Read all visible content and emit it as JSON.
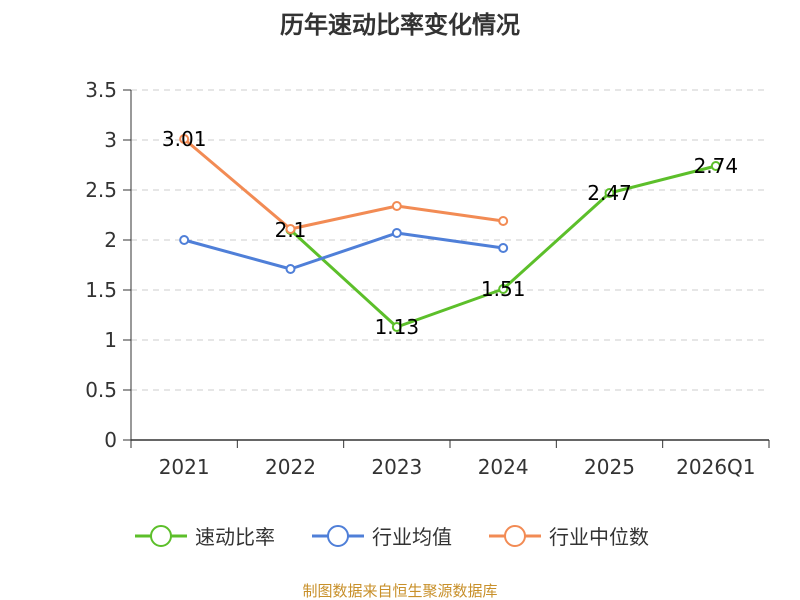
{
  "chart_data": {
    "type": "line",
    "title": "历年速动比率变化情况",
    "categories": [
      "2021",
      "2022",
      "2023",
      "2024",
      "2025",
      "2026Q1"
    ],
    "ylim": [
      0,
      3.5
    ],
    "yticks": [
      0,
      0.5,
      1,
      1.5,
      2,
      2.5,
      3,
      3.5
    ],
    "ytick_labels": [
      "0",
      "0.5",
      "1",
      "1.5",
      "2",
      "2.5",
      "3",
      "3.5"
    ],
    "grid": true,
    "legend_position": "bottom",
    "series": [
      {
        "name": "速动比率",
        "color": "#5cbf2a",
        "values": [
          null,
          2.1,
          1.13,
          1.51,
          2.47,
          2.74
        ],
        "labels": [
          "",
          "2.1",
          "1.13",
          "1.51",
          "2.47",
          "2.74"
        ]
      },
      {
        "name": "行业均值",
        "color": "#4f7fd8",
        "values": [
          2.0,
          1.71,
          2.07,
          1.92,
          null,
          null
        ],
        "labels": [
          "",
          "",
          "",
          "",
          "",
          ""
        ]
      },
      {
        "name": "行业中位数",
        "color": "#f28b54",
        "values": [
          3.01,
          2.11,
          2.34,
          2.19,
          null,
          null
        ],
        "labels": [
          "3.01",
          "",
          "",
          "",
          "",
          ""
        ]
      }
    ],
    "source": "制图数据来自恒生聚源数据库"
  }
}
